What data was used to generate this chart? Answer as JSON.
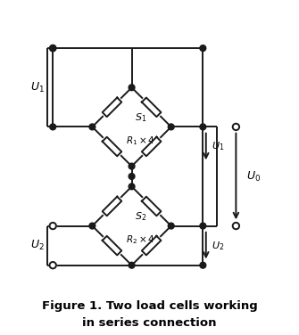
{
  "title_line1": "Figure 1. Two load cells working",
  "title_line2": "in series connection",
  "title_fontsize": 9.5,
  "background_color": "#ffffff",
  "line_color": "#1a1a1a",
  "lw": 1.4,
  "fig_width": 3.35,
  "fig_height": 3.76,
  "labels": {
    "U1_left": "$U_1$",
    "U2_left": "$U_2$",
    "U1_right": "$U_1$",
    "U2_right": "$U_2$",
    "U0": "$U_0$",
    "S1": "$S_1$",
    "S2": "$S_2$",
    "R1": "$R_1\\times 4$",
    "R2": "$R_2\\times 4$"
  }
}
